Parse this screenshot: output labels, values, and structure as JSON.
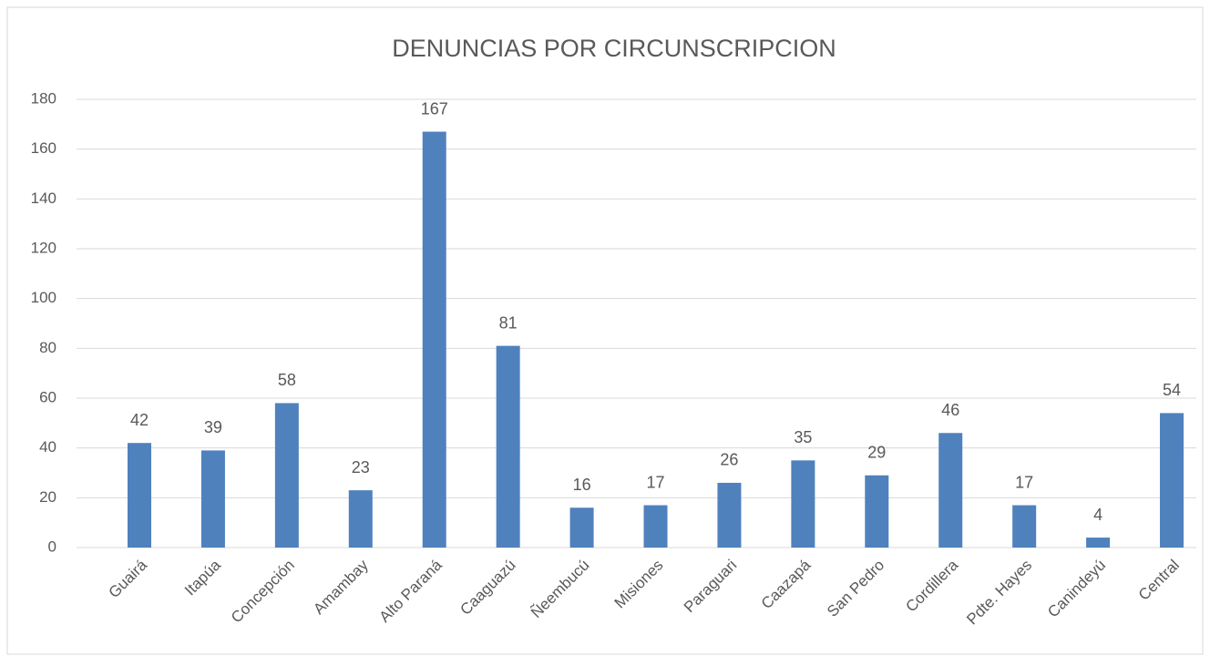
{
  "chart_data": {
    "type": "bar",
    "title": "DENUNCIAS POR CIRCUNSCRIPCION",
    "categories": [
      "Guairá",
      "Itapúa",
      "Concepción",
      "Amambay",
      "Alto Paraná",
      "Caaguazú",
      "Ñeembucú",
      "Misiones",
      "Paraguari",
      "Caazapá",
      "San Pedro",
      "Cordillera",
      "Pdte. Hayes",
      "Canindeyú",
      "Central"
    ],
    "values": [
      42,
      39,
      58,
      23,
      167,
      81,
      16,
      17,
      26,
      35,
      29,
      46,
      17,
      4,
      54
    ],
    "color": "#4f81bd",
    "ylim": [
      0,
      180
    ],
    "yticks": [
      0,
      20,
      40,
      60,
      80,
      100,
      120,
      140,
      160,
      180
    ],
    "grid": true
  }
}
